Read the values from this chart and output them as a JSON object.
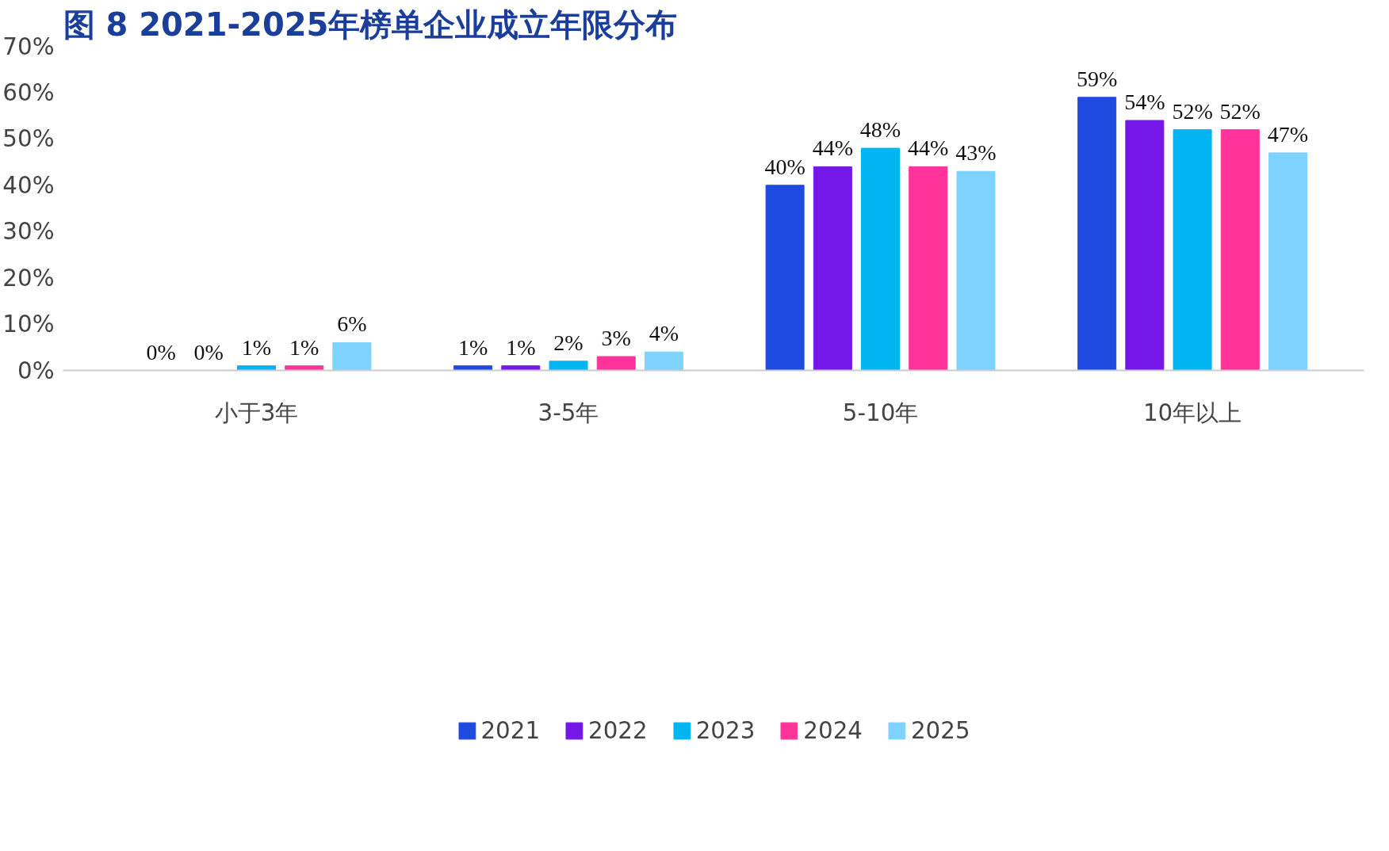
{
  "chart_data": {
    "type": "bar",
    "title": "图 8 2021-2025年榜单企业成立年限分布",
    "categories": [
      "小于3年",
      "3-5年",
      "5-10年",
      "10年以上"
    ],
    "series": [
      {
        "name": "2021",
        "color": "#1f4ae0",
        "values": [
          0,
          1,
          40,
          59
        ],
        "value_labels": [
          "0%",
          "1%",
          "40%",
          "59%"
        ]
      },
      {
        "name": "2022",
        "color": "#7417e8",
        "values": [
          0,
          1,
          44,
          54
        ],
        "value_labels": [
          "0%",
          "1%",
          "44%",
          "54%"
        ]
      },
      {
        "name": "2023",
        "color": "#00b5f1",
        "values": [
          1,
          2,
          48,
          52
        ],
        "value_labels": [
          "1%",
          "2%",
          "48%",
          "52%"
        ]
      },
      {
        "name": "2024",
        "color": "#ff3399",
        "values": [
          1,
          3,
          44,
          52
        ],
        "value_labels": [
          "1%",
          "3%",
          "44%",
          "52%"
        ]
      },
      {
        "name": "2025",
        "color": "#7dd3fd",
        "values": [
          6,
          4,
          43,
          47
        ],
        "value_labels": [
          "6%",
          "4%",
          "43%",
          "47%"
        ]
      }
    ],
    "ylim": [
      0,
      70
    ],
    "yticks": [
      {
        "value": 0,
        "label": "0%"
      },
      {
        "value": 10,
        "label": "10%"
      },
      {
        "value": 20,
        "label": "20%"
      },
      {
        "value": 30,
        "label": "30%"
      },
      {
        "value": 40,
        "label": "40%"
      },
      {
        "value": 50,
        "label": "50%"
      },
      {
        "value": 60,
        "label": "60%"
      },
      {
        "value": 70,
        "label": "70%"
      }
    ],
    "grid": false,
    "legend": "bottom"
  }
}
